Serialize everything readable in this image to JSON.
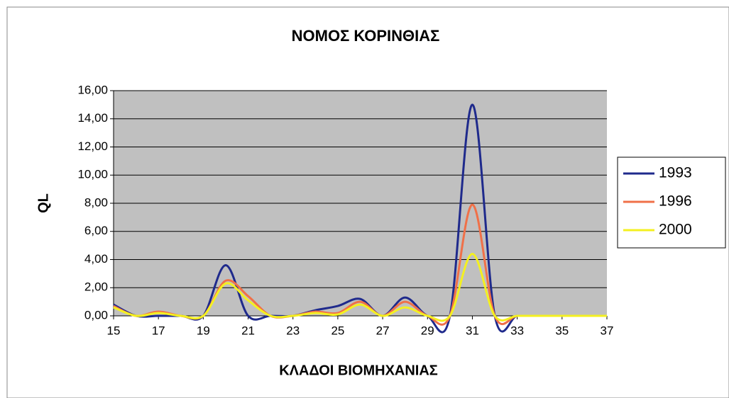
{
  "chart_data": {
    "type": "line",
    "title": "ΝΟΜΟΣ ΚΟΡΙΝΘΙΑΣ",
    "xlabel": "ΚΛΑΔΟΙ ΒΙΟΜΗΧΑΝΙΑΣ",
    "ylabel": "QL",
    "x": [
      15,
      16,
      17,
      18,
      19,
      20,
      21,
      22,
      23,
      24,
      25,
      26,
      27,
      28,
      29,
      30,
      31,
      32,
      33,
      34,
      35,
      36,
      37
    ],
    "series": [
      {
        "name": "1993",
        "color": "#1f2a8c",
        "values": [
          0.8,
          0,
          0,
          0,
          0,
          3.6,
          0,
          0,
          0,
          0.4,
          0.7,
          1.2,
          0,
          1.3,
          0,
          0,
          15,
          0,
          0,
          0,
          0,
          0,
          0
        ]
      },
      {
        "name": "1996",
        "color": "#f07048",
        "values": [
          0.7,
          0,
          0.3,
          0,
          0,
          2.5,
          1.4,
          0,
          0,
          0.3,
          0.2,
          1.0,
          0,
          1.0,
          0,
          0,
          7.9,
          0,
          0,
          0,
          0,
          0,
          0
        ]
      },
      {
        "name": "2000",
        "color": "#f4f020",
        "values": [
          0.6,
          0,
          0.2,
          0,
          0,
          2.3,
          1.1,
          0,
          0,
          0.2,
          0.1,
          0.8,
          0,
          0.6,
          0,
          0,
          4.4,
          0,
          0,
          0,
          0,
          0,
          0
        ]
      }
    ],
    "xlim": [
      15,
      37
    ],
    "xticks": [
      15,
      17,
      19,
      21,
      23,
      25,
      27,
      29,
      31,
      33,
      35,
      37
    ],
    "ylim": [
      0,
      16
    ],
    "yticks": [
      {
        "value": 0,
        "label": "0,00"
      },
      {
        "value": 2,
        "label": "2,00"
      },
      {
        "value": 4,
        "label": "4,00"
      },
      {
        "value": 6,
        "label": "6,00"
      },
      {
        "value": 8,
        "label": "8,00"
      },
      {
        "value": 10,
        "label": "10,00"
      },
      {
        "value": 12,
        "label": "12,00"
      },
      {
        "value": 14,
        "label": "14,00"
      },
      {
        "value": 16,
        "label": "16,00"
      }
    ],
    "grid": true,
    "legend": "right",
    "smooth": true
  }
}
